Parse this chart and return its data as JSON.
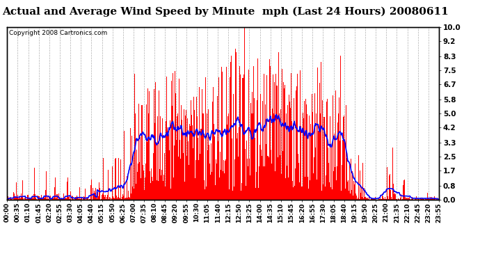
{
  "title": "Actual and Average Wind Speed by Minute  mph (Last 24 Hours) 20080611",
  "copyright": "Copyright 2008 Cartronics.com",
  "ylabel_right_ticks": [
    0.0,
    0.8,
    1.7,
    2.5,
    3.3,
    4.2,
    5.0,
    5.8,
    6.7,
    7.5,
    8.3,
    9.2,
    10.0
  ],
  "ymax": 10.0,
  "ymin": 0.0,
  "bar_color": "#ff0000",
  "line_color": "#0000ff",
  "background_color": "#ffffff",
  "grid_color": "#b0b0b0",
  "title_fontsize": 11,
  "copyright_fontsize": 6.5,
  "tick_label_fontsize": 6.5,
  "num_minutes": 1440,
  "x_tick_labels": [
    "00:00",
    "00:35",
    "01:10",
    "01:45",
    "02:20",
    "02:55",
    "03:30",
    "04:05",
    "04:40",
    "05:15",
    "05:50",
    "06:25",
    "07:00",
    "07:35",
    "08:10",
    "08:45",
    "09:20",
    "09:55",
    "10:30",
    "11:05",
    "11:40",
    "12:15",
    "12:50",
    "13:25",
    "14:00",
    "14:35",
    "15:10",
    "15:45",
    "16:20",
    "16:55",
    "17:30",
    "18:05",
    "18:40",
    "19:15",
    "19:50",
    "20:25",
    "21:00",
    "21:35",
    "22:10",
    "22:45",
    "23:20",
    "23:55"
  ]
}
